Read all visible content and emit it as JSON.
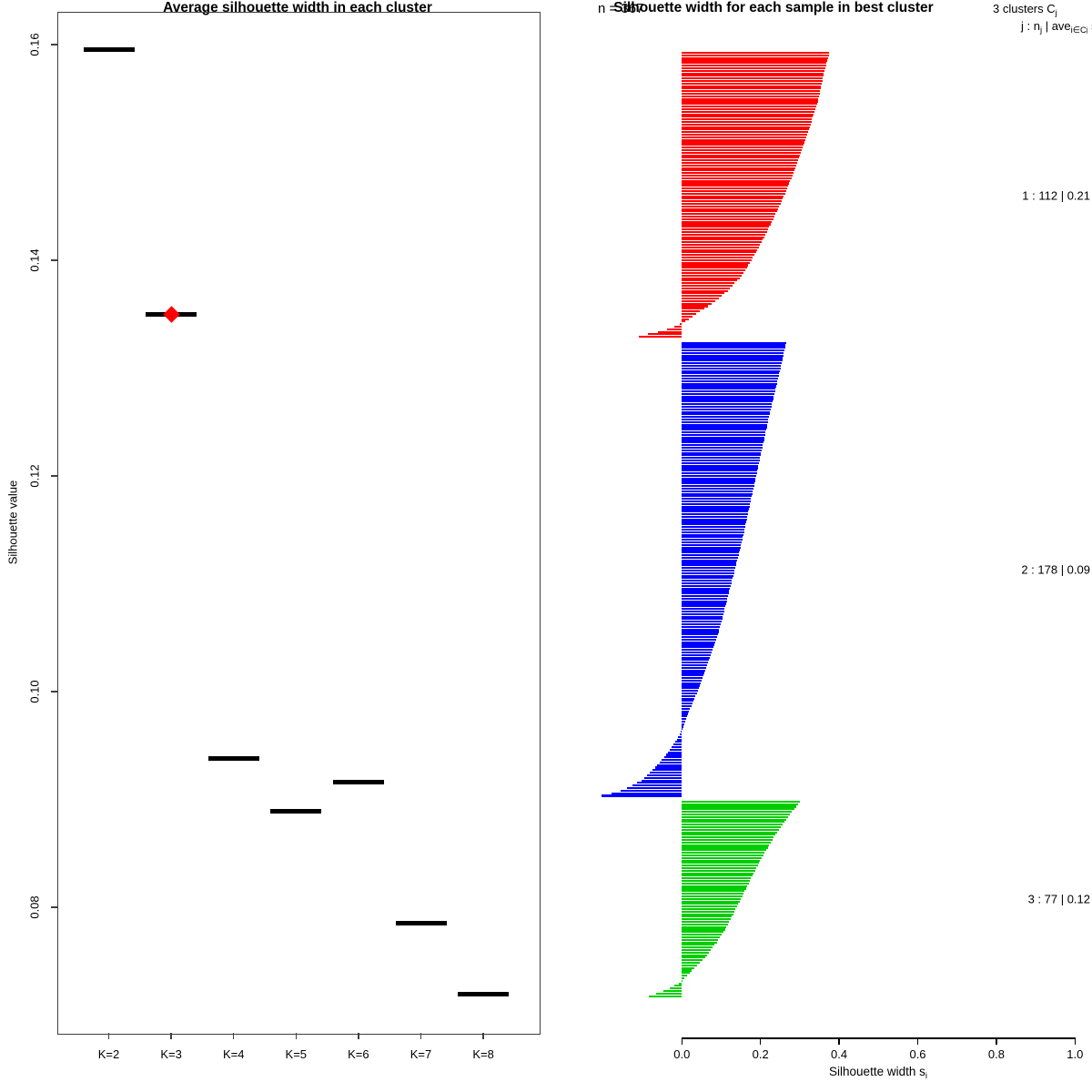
{
  "page": {
    "background": "#ffffff",
    "foreground": "#000000"
  },
  "left_panel": {
    "title": "Average silhouette width in each cluster",
    "ylabel": "Silhouette value",
    "ytick_labels": [
      "0.16",
      "0.14",
      "0.12",
      "0.10",
      "0.08"
    ],
    "xtick_labels": [
      "K=2",
      "K=3",
      "K=4",
      "K=5",
      "K=6",
      "K=7",
      "K=8"
    ]
  },
  "right_panel": {
    "title": "Silhouette width for each sample in best cluster",
    "n_annotation": "n = 367",
    "header_line1_tokens": [
      {
        "t": "3 clusters C"
      },
      {
        "s": "j"
      }
    ],
    "header_line2_tokens": [
      {
        "t": "j :  n"
      },
      {
        "s": "j"
      },
      {
        "t": " | ave"
      },
      {
        "s": "i∈C"
      },
      {
        "ss": "j"
      },
      {
        "t": " s"
      },
      {
        "s": "i"
      }
    ],
    "xlabel_tokens": [
      {
        "t": "Silhouette width s"
      },
      {
        "s": "i"
      }
    ],
    "xtick_labels": [
      "0.0",
      "0.2",
      "0.4",
      "0.6",
      "0.8",
      "1.0"
    ],
    "cluster_labels": [
      "1 :  112  |  0.21",
      "2 :  178  |  0.09",
      "3 :  77  |  0.12"
    ]
  },
  "chart_data": [
    {
      "type": "scatter",
      "title": "Average silhouette width in each cluster",
      "xlabel": "",
      "ylabel": "Silhouette value",
      "categories": [
        "K=2",
        "K=3",
        "K=4",
        "K=5",
        "K=6",
        "K=7",
        "K=8"
      ],
      "values": [
        0.1595,
        0.135,
        0.0938,
        0.0889,
        0.0916,
        0.0785,
        0.0719
      ],
      "marker": "horizontal-segment",
      "segment_color": "#000000",
      "best": {
        "category": "K=3",
        "value": 0.135,
        "marker": "diamond",
        "color": "#ff0000"
      },
      "ytick_values": [
        0.16,
        0.14,
        0.12,
        0.1,
        0.08
      ],
      "ylim": [
        0.069,
        0.163
      ],
      "grid": false
    },
    {
      "type": "bar",
      "orientation": "horizontal",
      "title": "Silhouette width for each sample in best cluster",
      "n_total": 367,
      "k_clusters": 3,
      "xlabel": "Silhouette width s_i",
      "xtick_values": [
        0.0,
        0.2,
        0.4,
        0.6,
        0.8,
        1.0
      ],
      "xlim": [
        -0.22,
        1.0
      ],
      "grid": false,
      "legend_position": "right-margin",
      "clusters": [
        {
          "j": 1,
          "n": 112,
          "ave_width": 0.21,
          "color": "#ff0000",
          "label": "1 :  112  |  0.21",
          "profile": [
            [
              0,
              0.375
            ],
            [
              0.08,
              0.36
            ],
            [
              0.18,
              0.345
            ],
            [
              0.3,
              0.315
            ],
            [
              0.42,
              0.285
            ],
            [
              0.52,
              0.255
            ],
            [
              0.62,
              0.22
            ],
            [
              0.7,
              0.19
            ],
            [
              0.78,
              0.155
            ],
            [
              0.84,
              0.115
            ],
            [
              0.88,
              0.08
            ],
            [
              0.92,
              0.035
            ],
            [
              0.945,
              0.01
            ],
            [
              0.955,
              -0.005
            ],
            [
              0.97,
              -0.03
            ],
            [
              0.985,
              -0.07
            ],
            [
              1.0,
              -0.11
            ]
          ]
        },
        {
          "j": 2,
          "n": 178,
          "ave_width": 0.09,
          "color": "#0000ff",
          "label": "2 :  178  |  0.09",
          "profile": [
            [
              0,
              0.265
            ],
            [
              0.06,
              0.25
            ],
            [
              0.15,
              0.225
            ],
            [
              0.25,
              0.2
            ],
            [
              0.35,
              0.175
            ],
            [
              0.45,
              0.15
            ],
            [
              0.55,
              0.12
            ],
            [
              0.62,
              0.1
            ],
            [
              0.7,
              0.07
            ],
            [
              0.76,
              0.045
            ],
            [
              0.8,
              0.025
            ],
            [
              0.83,
              0.01
            ],
            [
              0.855,
              0.0
            ],
            [
              0.88,
              -0.015
            ],
            [
              0.91,
              -0.04
            ],
            [
              0.94,
              -0.07
            ],
            [
              0.965,
              -0.1
            ],
            [
              0.98,
              -0.13
            ],
            [
              0.99,
              -0.16
            ],
            [
              1.0,
              -0.205
            ]
          ]
        },
        {
          "j": 3,
          "n": 77,
          "ave_width": 0.12,
          "color": "#00cd00",
          "label": "3 :  77  |  0.12",
          "profile": [
            [
              0,
              0.3
            ],
            [
              0.08,
              0.27
            ],
            [
              0.18,
              0.235
            ],
            [
              0.3,
              0.2
            ],
            [
              0.42,
              0.17
            ],
            [
              0.54,
              0.14
            ],
            [
              0.64,
              0.115
            ],
            [
              0.72,
              0.09
            ],
            [
              0.8,
              0.06
            ],
            [
              0.86,
              0.03
            ],
            [
              0.9,
              0.01
            ],
            [
              0.93,
              -0.005
            ],
            [
              0.96,
              -0.03
            ],
            [
              0.98,
              -0.055
            ],
            [
              1.0,
              -0.085
            ]
          ]
        }
      ]
    }
  ]
}
